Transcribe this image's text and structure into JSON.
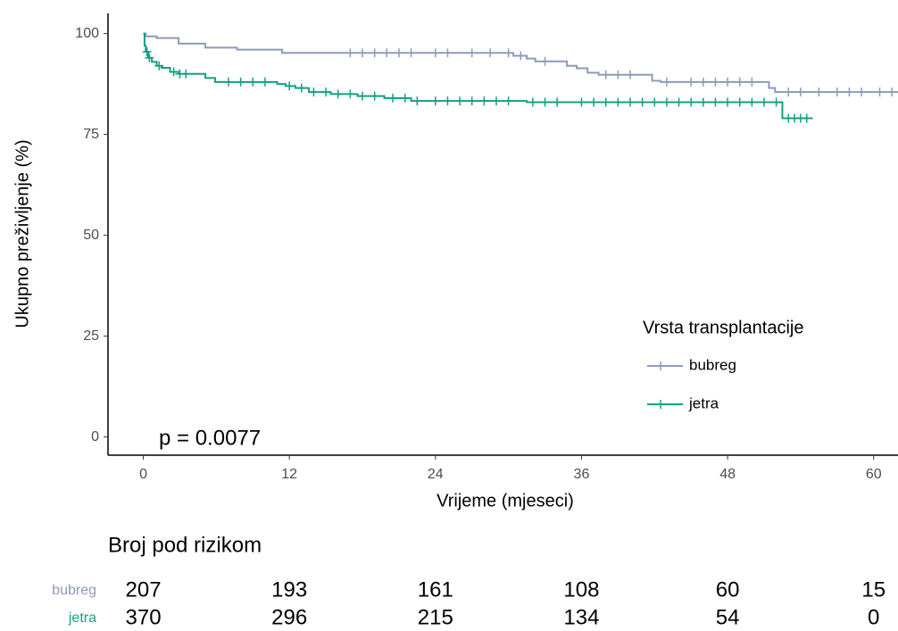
{
  "chart_data": {
    "type": "step",
    "x_label": "Vrijeme (mjeseci)",
    "y_label": "Ukupno preživljenje (%)",
    "annotation": "p = 0.0077",
    "legend_title": "Vrsta transplantacije",
    "xlim": [
      -2.9,
      62
    ],
    "xticks": [
      0,
      12,
      24,
      36,
      48,
      60
    ],
    "ylim": [
      -4.5,
      105
    ],
    "yticks": [
      0,
      25,
      50,
      75,
      100
    ],
    "series": [
      {
        "name": "bubreg",
        "color": "#8e9ab9",
        "x": [
          0,
          0.2,
          1.1,
          2.9,
          5.1,
          7.7,
          11.4,
          30.4,
          31.5,
          32.2,
          34.8,
          35.6,
          36.5,
          37.4,
          41.8,
          42.5,
          51.4,
          51.9,
          62
        ],
        "values": [
          100,
          99.3,
          98.9,
          97.5,
          96.5,
          96,
          95.2,
          94.5,
          93.8,
          93.1,
          92,
          91.4,
          90.3,
          89.8,
          88.3,
          88,
          86.5,
          85.5,
          85.5
        ],
        "censored": {
          "x": [
            17,
            18,
            19,
            20,
            21,
            22,
            24,
            25,
            27,
            28.5,
            30,
            31,
            33,
            38,
            39,
            40,
            43,
            45,
            46,
            47,
            48,
            49,
            50,
            53,
            54,
            55.5,
            57,
            58,
            59,
            60.5,
            61.5
          ],
          "values": [
            95.2,
            95.2,
            95.2,
            95.2,
            95.2,
            95.2,
            95.2,
            95.2,
            95.2,
            95.2,
            95.2,
            94.5,
            93.1,
            89.8,
            89.8,
            89.8,
            88,
            88,
            88,
            88,
            88,
            88,
            88,
            85.5,
            85.5,
            85.5,
            85.5,
            85.5,
            85.5,
            85.5,
            85.5
          ]
        }
      },
      {
        "name": "jetra",
        "color": "#14a085",
        "x": [
          0,
          0.1,
          0.2,
          0.4,
          0.7,
          1.1,
          1.5,
          2.2,
          2.9,
          5.1,
          5.9,
          11,
          11.7,
          12.5,
          13.6,
          15.4,
          17.6,
          19.8,
          22,
          31.5,
          52.5,
          55
        ],
        "values": [
          100,
          97,
          95.5,
          94,
          93,
          92,
          91.5,
          90.5,
          90,
          89,
          88,
          87.5,
          87,
          86.5,
          85.5,
          85,
          84.5,
          84,
          83.3,
          83,
          79,
          79
        ],
        "censored": {
          "x": [
            0.3,
            0.5,
            1.3,
            2.5,
            3,
            3.5,
            7,
            8,
            9,
            10,
            12,
            13,
            14,
            15,
            16,
            17,
            18,
            19,
            20.5,
            21.5,
            22.5,
            24,
            25,
            26,
            27,
            28,
            29,
            30,
            32,
            33,
            34,
            36,
            37,
            38,
            39,
            40,
            41,
            42,
            43,
            44,
            45,
            46,
            47,
            48,
            49,
            50,
            51,
            52,
            53,
            53.5,
            54,
            54.5
          ],
          "values": [
            95.5,
            94,
            92,
            90.5,
            90,
            90,
            88,
            88,
            88,
            88,
            87,
            86.5,
            85.5,
            85.5,
            85,
            85,
            84.5,
            84.5,
            84,
            84,
            83.3,
            83.3,
            83.3,
            83.3,
            83.3,
            83.3,
            83.3,
            83.3,
            83,
            83,
            83,
            83,
            83,
            83,
            83,
            83,
            83,
            83,
            83,
            83,
            83,
            83,
            83,
            83,
            83,
            83,
            83,
            83,
            79,
            79,
            79,
            79
          ]
        }
      }
    ]
  },
  "risk_table": {
    "title": "Broj pod rizikom",
    "rows": [
      {
        "name": "bubreg",
        "color": "#8e9ab9",
        "values": [
          207,
          193,
          161,
          108,
          60,
          15
        ]
      },
      {
        "name": "jetra",
        "color": "#14a085",
        "values": [
          370,
          296,
          215,
          134,
          54,
          0
        ]
      }
    ]
  }
}
